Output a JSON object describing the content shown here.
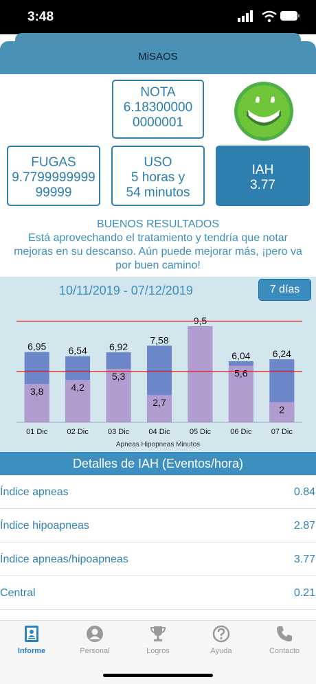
{
  "status": {
    "time": "3:48"
  },
  "header": {
    "title": "MiSAOS"
  },
  "nota": {
    "label": "NOTA",
    "value_line1": "6.18300000",
    "value_line2": "0000001"
  },
  "fugas": {
    "label": "FUGAS",
    "value_line1": "9.7799999999",
    "value_line2": "99999"
  },
  "uso": {
    "label": "USO",
    "value_line1": "5 horas y",
    "value_line2": "54 minutos"
  },
  "iah": {
    "label": "IAH",
    "value": "3.77"
  },
  "message": {
    "title": "BUENOS RESULTADOS",
    "line1": "Está aprovechando el tratamiento y tendría que notar",
    "line2": "mejoras en su descanso. Aún puede mejorar más, ¡pero va",
    "line3": "por buen camino!"
  },
  "range": {
    "text": "10/11/2019 - 07/12/2019",
    "button": "7 días"
  },
  "chart_data": {
    "type": "bar",
    "categories": [
      "01 Dic",
      "02 Dic",
      "03 Dic",
      "04 Dic",
      "05 Dic",
      "06 Dic",
      "07 Dic"
    ],
    "series": [
      {
        "values": [
          6.95,
          6.54,
          6.92,
          7.58,
          9.5,
          6.04,
          6.24
        ],
        "color": "#6b86c9"
      },
      {
        "values": [
          3.8,
          4.2,
          5.3,
          2.7,
          9.5,
          5.6,
          2
        ],
        "color": "#b19ccf"
      }
    ],
    "value_labels_top": [
      "6,95",
      "6,54",
      "6,92",
      "7,58",
      "9,5",
      "6,04",
      "6,24"
    ],
    "value_labels_inner": [
      "3,8",
      "4,2",
      "5,3",
      "2,7",
      "",
      "5,6",
      "2"
    ],
    "reference_lines": [
      10,
      5
    ],
    "reference_color": "#e01010",
    "ylim": [
      0,
      11
    ],
    "overlapping_legend": "Apneas Hipopneas Minutos"
  },
  "details": {
    "title": "Detalles de IAH (Eventos/hora)",
    "rows": [
      {
        "name": "Índice apneas",
        "value": "0.84"
      },
      {
        "name": "Índice hipoapneas",
        "value": "2.87"
      },
      {
        "name": "Índice apneas/hipoapneas",
        "value": "3.77"
      },
      {
        "name": "Central",
        "value": "0.21"
      }
    ]
  },
  "tabs": [
    {
      "label": "Informe",
      "icon": "report-icon"
    },
    {
      "label": "Personal",
      "icon": "person-icon"
    },
    {
      "label": "Logros",
      "icon": "trophy-icon"
    },
    {
      "label": "Ayuda",
      "icon": "help-icon"
    },
    {
      "label": "Contacto",
      "icon": "phone-icon"
    }
  ],
  "colors": {
    "accent": "#2f7eb0",
    "chart_bg": "#d3e6ed",
    "tab_active": "#2d82c0",
    "tab_inactive": "#9a9a9a"
  }
}
